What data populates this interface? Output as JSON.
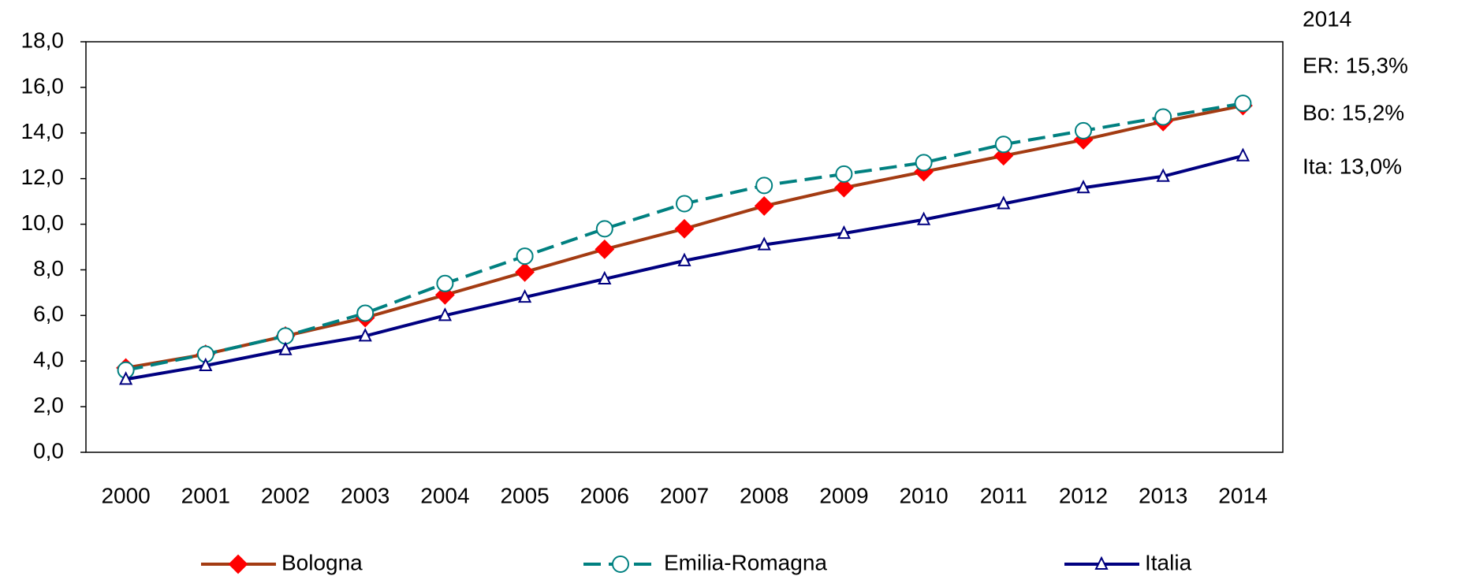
{
  "chart_data": {
    "type": "line",
    "categories": [
      "2000",
      "2001",
      "2002",
      "2003",
      "2004",
      "2005",
      "2006",
      "2007",
      "2008",
      "2009",
      "2010",
      "2011",
      "2012",
      "2013",
      "2014"
    ],
    "series": [
      {
        "name": "Bologna",
        "color": "#a33b12",
        "marker_color": "#ff0000",
        "marker": "diamond",
        "dash": false,
        "values": [
          3.7,
          4.3,
          5.1,
          5.9,
          6.9,
          7.9,
          8.9,
          9.8,
          10.8,
          11.6,
          12.3,
          13.0,
          13.7,
          14.5,
          15.2
        ]
      },
      {
        "name": "Emilia-Romagna",
        "color": "#008080",
        "marker_color": "#ffffff",
        "marker": "circle",
        "dash": true,
        "values": [
          3.6,
          4.3,
          5.1,
          6.1,
          7.4,
          8.6,
          9.8,
          10.9,
          11.7,
          12.2,
          12.7,
          13.5,
          14.1,
          14.7,
          15.3
        ]
      },
      {
        "name": "Italia",
        "color": "#000080",
        "marker_color": "#ffffff",
        "marker": "triangle",
        "dash": false,
        "values": [
          3.2,
          3.8,
          4.5,
          5.1,
          6.0,
          6.8,
          7.6,
          8.4,
          9.1,
          9.6,
          10.2,
          10.9,
          11.6,
          12.1,
          13.0
        ]
      }
    ],
    "ylim": [
      0,
      18
    ],
    "yticks": [
      {
        "value": 0,
        "label": "0,0"
      },
      {
        "value": 2,
        "label": "2,0"
      },
      {
        "value": 4,
        "label": "4,0"
      },
      {
        "value": 6,
        "label": "6,0"
      },
      {
        "value": 8,
        "label": "8,0"
      },
      {
        "value": 10,
        "label": "10,0"
      },
      {
        "value": 12,
        "label": "12,0"
      },
      {
        "value": 14,
        "label": "14,0"
      },
      {
        "value": 16,
        "label": "16,0"
      },
      {
        "value": 18,
        "label": "18,0"
      }
    ],
    "grid": false,
    "legend": "bottom",
    "annotations": [
      "2014",
      "ER: 15,3%",
      "Bo: 15,2%",
      "Ita: 13,0%"
    ]
  }
}
